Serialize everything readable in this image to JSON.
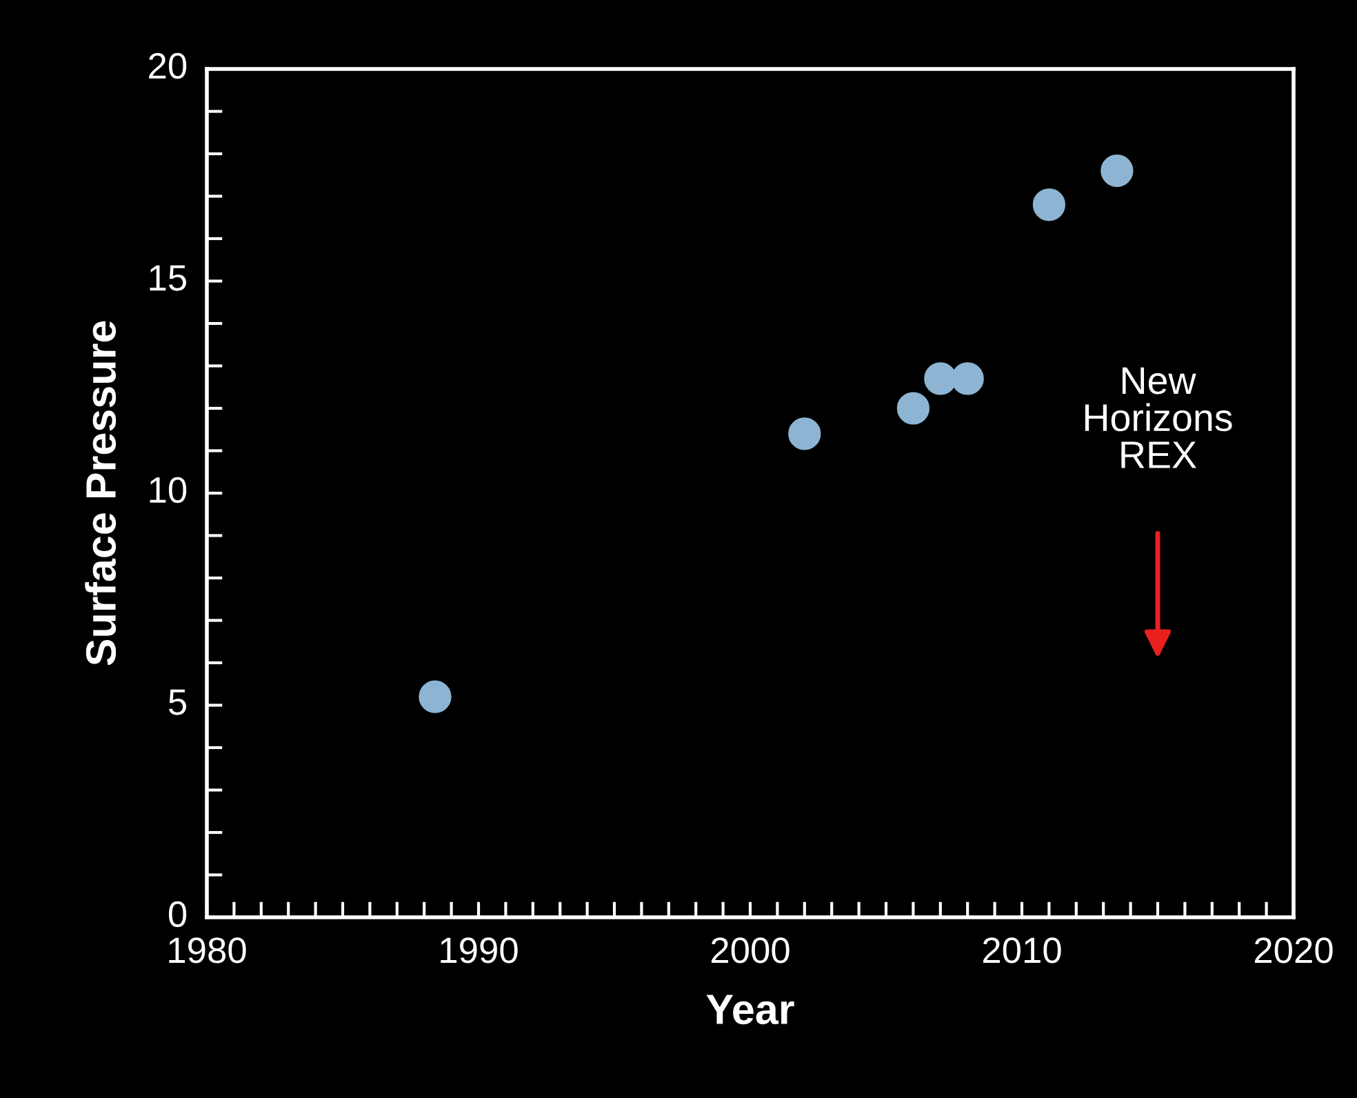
{
  "chart_data": {
    "type": "scatter",
    "xlabel": "Year",
    "ylabel": "Surface Pressure",
    "x": [
      1988.4,
      2002,
      2006,
      2007,
      2008,
      2011,
      2013.5
    ],
    "values": [
      5.2,
      11.4,
      12.0,
      12.7,
      12.7,
      16.8,
      17.6
    ],
    "color": "#8db5d3",
    "marker": "circle",
    "xlim": [
      1980,
      2020
    ],
    "xticks": [
      1980,
      1990,
      2000,
      2010,
      2020
    ],
    "ylim": [
      0,
      20
    ],
    "yticks": [
      0,
      5,
      10,
      15,
      20
    ],
    "grid": false,
    "legend": false,
    "annotations": [
      "New\nHorizons\nREX"
    ]
  }
}
